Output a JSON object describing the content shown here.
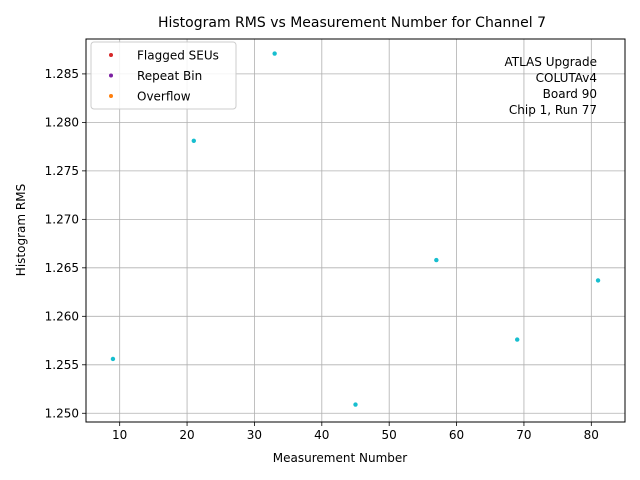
{
  "chart_data": {
    "type": "scatter",
    "title": "Histogram RMS vs Measurement Number for Channel 7",
    "xlabel": "Measurement Number",
    "ylabel": "Histogram RMS",
    "xlim": [
      5,
      85
    ],
    "ylim": [
      1.2491,
      1.2886
    ],
    "xticks": [
      10,
      20,
      30,
      40,
      50,
      60,
      70,
      80
    ],
    "yticks": [
      1.25,
      1.255,
      1.26,
      1.265,
      1.27,
      1.275,
      1.28,
      1.285
    ],
    "grid": true,
    "legend_position": "upper-left",
    "series": [
      {
        "name": "",
        "color": "#17becf",
        "points": [
          {
            "x": 9,
            "y": 1.2556
          },
          {
            "x": 21,
            "y": 1.2781
          },
          {
            "x": 33,
            "y": 1.2871
          },
          {
            "x": 45,
            "y": 1.2509
          },
          {
            "x": 57,
            "y": 1.2658
          },
          {
            "x": 69,
            "y": 1.2576
          },
          {
            "x": 81,
            "y": 1.2637
          }
        ]
      }
    ],
    "legend": [
      {
        "label": "Flagged SEUs",
        "color": "#d62728"
      },
      {
        "label": "Repeat Bin",
        "color": "#7b1fa2"
      },
      {
        "label": "Overflow",
        "color": "#ff7f0e"
      }
    ],
    "annotation_lines": [
      "ATLAS Upgrade",
      "COLUTAv4",
      "Board 90",
      "Chip 1, Run 77"
    ]
  }
}
